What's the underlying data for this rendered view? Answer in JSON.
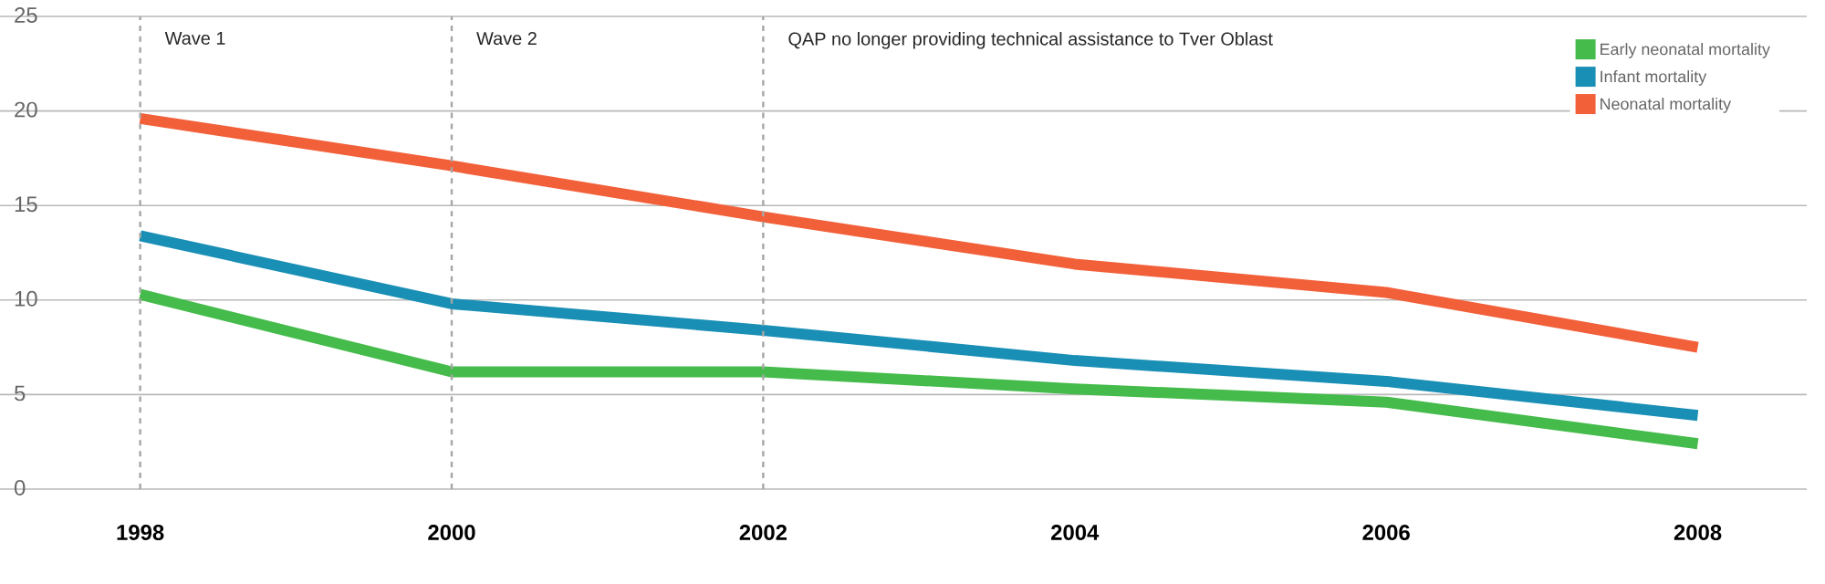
{
  "chart_data": {
    "type": "line",
    "x": [
      1998,
      2000,
      2002,
      2004,
      2006,
      2008
    ],
    "series": [
      {
        "name": "Early neonatal mortality",
        "color": "#44bb4a",
        "values": [
          10.3,
          6.2,
          6.2,
          5.3,
          4.6,
          2.4
        ]
      },
      {
        "name": "Infant mortality",
        "color": "#1a8fb5",
        "values": [
          13.4,
          9.8,
          8.4,
          6.8,
          5.7,
          3.9
        ]
      },
      {
        "name": "Neonatal mortality",
        "color": "#f2603a",
        "values": [
          19.6,
          17.1,
          14.4,
          11.9,
          10.4,
          7.5
        ]
      }
    ],
    "xlim": [
      1997.1,
      2008.7
    ],
    "xticks": [
      1998,
      2000,
      2002,
      2004,
      2006,
      2008
    ],
    "ylim": [
      0,
      25
    ],
    "yticks": [
      0,
      5,
      10,
      15,
      20,
      25
    ],
    "grid": "y",
    "legend": "top right",
    "marker": "none",
    "line_style": "solid",
    "ref_lines": [
      {
        "axis": "x",
        "value": 1998,
        "label": "Wave 1"
      },
      {
        "axis": "x",
        "value": 2000,
        "label": "Wave 2"
      },
      {
        "axis": "x",
        "value": 2002,
        "label": "QAP no longer providing technical assistance to Tver Oblast"
      }
    ]
  }
}
